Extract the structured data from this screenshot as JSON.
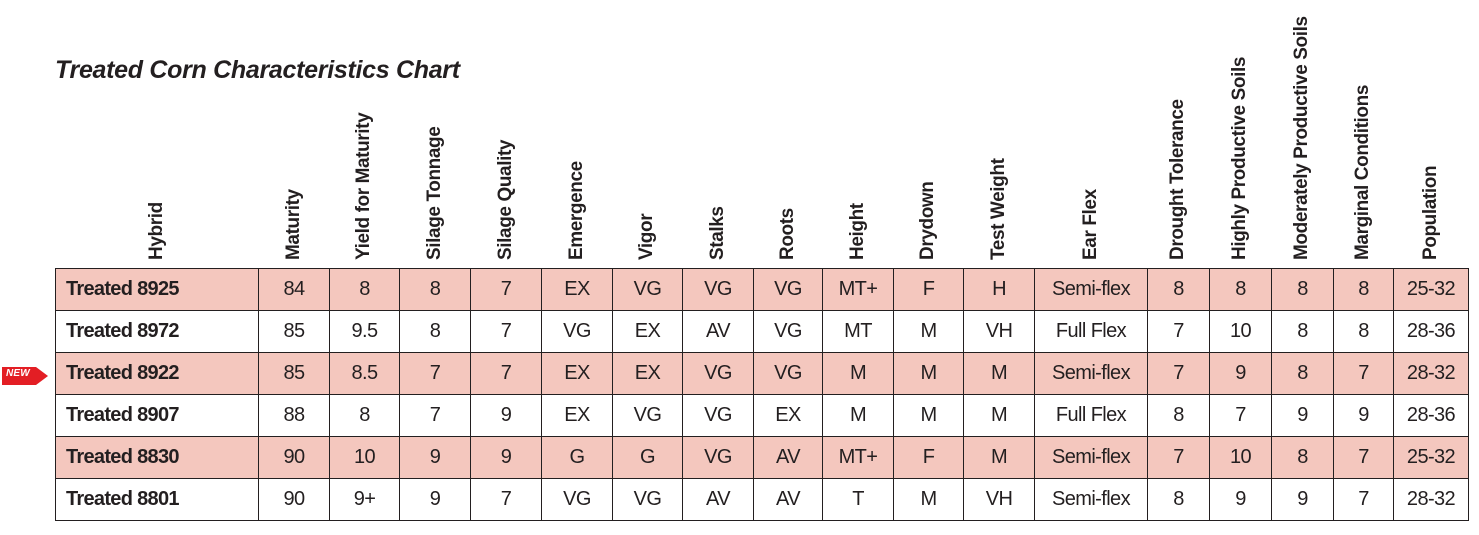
{
  "title": "Treated Corn Characteristics Chart",
  "badge": "NEW",
  "columns": [
    "Hybrid",
    "Maturity",
    "Yield for Maturity",
    "Silage Tonnage",
    "Silage Quality",
    "Emergence",
    "Vigor",
    "Stalks",
    "Roots",
    "Height",
    "Drydown",
    "Test Weight",
    "Ear Flex",
    "Drought Tolerance",
    "Highly Productive Soils",
    "Moderately Productive Soils",
    "Marginal Conditions",
    "Population"
  ],
  "rows": [
    {
      "highlight": true,
      "new": false,
      "cells": [
        "Treated 8925",
        "84",
        "8",
        "8",
        "7",
        "EX",
        "VG",
        "VG",
        "VG",
        "MT+",
        "F",
        "H",
        "Semi-flex",
        "8",
        "8",
        "8",
        "8",
        "25-32"
      ]
    },
    {
      "highlight": false,
      "new": false,
      "cells": [
        "Treated 8972",
        "85",
        "9.5",
        "8",
        "7",
        "VG",
        "EX",
        "AV",
        "VG",
        "MT",
        "M",
        "VH",
        "Full Flex",
        "7",
        "10",
        "8",
        "8",
        "28-36"
      ]
    },
    {
      "highlight": true,
      "new": true,
      "cells": [
        "Treated 8922",
        "85",
        "8.5",
        "7",
        "7",
        "EX",
        "EX",
        "VG",
        "VG",
        "M",
        "M",
        "M",
        "Semi-flex",
        "7",
        "9",
        "8",
        "7",
        "28-32"
      ]
    },
    {
      "highlight": false,
      "new": false,
      "cells": [
        "Treated 8907",
        "88",
        "8",
        "7",
        "9",
        "EX",
        "VG",
        "VG",
        "EX",
        "M",
        "M",
        "M",
        "Full Flex",
        "8",
        "7",
        "9",
        "9",
        "28-36"
      ]
    },
    {
      "highlight": true,
      "new": false,
      "cells": [
        "Treated 8830",
        "90",
        "10",
        "9",
        "9",
        "G",
        "G",
        "VG",
        "AV",
        "MT+",
        "F",
        "M",
        "Semi-flex",
        "7",
        "10",
        "8",
        "7",
        "25-32"
      ]
    },
    {
      "highlight": false,
      "new": false,
      "cells": [
        "Treated 8801",
        "90",
        "9+",
        "9",
        "7",
        "VG",
        "VG",
        "AV",
        "AV",
        "T",
        "M",
        "VH",
        "Semi-flex",
        "8",
        "9",
        "9",
        "7",
        "28-32"
      ]
    }
  ],
  "colors": {
    "highlight_row": "#f4c7be",
    "badge": "#e31e24",
    "border": "#231f20"
  }
}
